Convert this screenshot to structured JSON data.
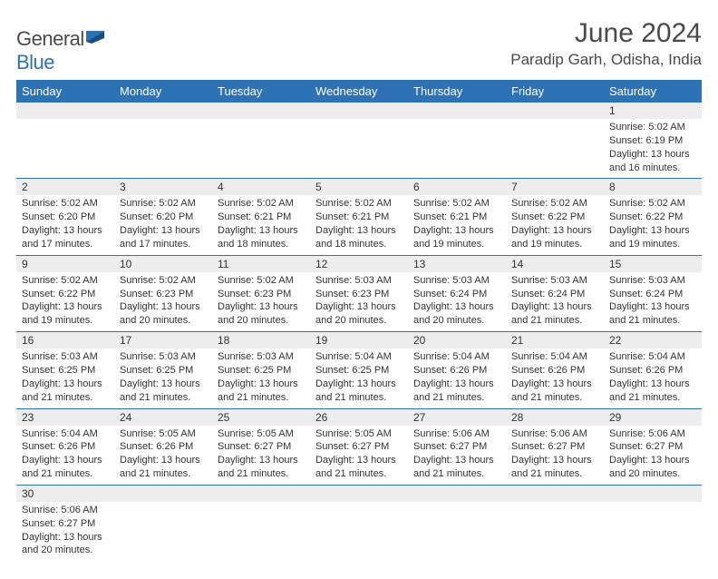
{
  "brand": {
    "part1": "General",
    "part2": "Blue"
  },
  "title": "June 2024",
  "location": "Paradip Garh, Odisha, India",
  "colors": {
    "header_bg": "#2d72b5",
    "header_text": "#ffffff",
    "daynum_bg": "#ededed",
    "border": "#2d72b5",
    "text": "#333333",
    "title_color": "#4a4a4a"
  },
  "fonts": {
    "title_size": 30,
    "location_size": 17,
    "day_header_size": 13,
    "daynum_size": 12,
    "body_size": 11
  },
  "day_headers": [
    "Sunday",
    "Monday",
    "Tuesday",
    "Wednesday",
    "Thursday",
    "Friday",
    "Saturday"
  ],
  "weeks": [
    [
      null,
      null,
      null,
      null,
      null,
      null,
      {
        "n": "1",
        "sr": "5:02 AM",
        "ss": "6:19 PM",
        "dl": "13 hours and 16 minutes."
      }
    ],
    [
      {
        "n": "2",
        "sr": "5:02 AM",
        "ss": "6:20 PM",
        "dl": "13 hours and 17 minutes."
      },
      {
        "n": "3",
        "sr": "5:02 AM",
        "ss": "6:20 PM",
        "dl": "13 hours and 17 minutes."
      },
      {
        "n": "4",
        "sr": "5:02 AM",
        "ss": "6:21 PM",
        "dl": "13 hours and 18 minutes."
      },
      {
        "n": "5",
        "sr": "5:02 AM",
        "ss": "6:21 PM",
        "dl": "13 hours and 18 minutes."
      },
      {
        "n": "6",
        "sr": "5:02 AM",
        "ss": "6:21 PM",
        "dl": "13 hours and 19 minutes."
      },
      {
        "n": "7",
        "sr": "5:02 AM",
        "ss": "6:22 PM",
        "dl": "13 hours and 19 minutes."
      },
      {
        "n": "8",
        "sr": "5:02 AM",
        "ss": "6:22 PM",
        "dl": "13 hours and 19 minutes."
      }
    ],
    [
      {
        "n": "9",
        "sr": "5:02 AM",
        "ss": "6:22 PM",
        "dl": "13 hours and 19 minutes."
      },
      {
        "n": "10",
        "sr": "5:02 AM",
        "ss": "6:23 PM",
        "dl": "13 hours and 20 minutes."
      },
      {
        "n": "11",
        "sr": "5:02 AM",
        "ss": "6:23 PM",
        "dl": "13 hours and 20 minutes."
      },
      {
        "n": "12",
        "sr": "5:03 AM",
        "ss": "6:23 PM",
        "dl": "13 hours and 20 minutes."
      },
      {
        "n": "13",
        "sr": "5:03 AM",
        "ss": "6:24 PM",
        "dl": "13 hours and 20 minutes."
      },
      {
        "n": "14",
        "sr": "5:03 AM",
        "ss": "6:24 PM",
        "dl": "13 hours and 21 minutes."
      },
      {
        "n": "15",
        "sr": "5:03 AM",
        "ss": "6:24 PM",
        "dl": "13 hours and 21 minutes."
      }
    ],
    [
      {
        "n": "16",
        "sr": "5:03 AM",
        "ss": "6:25 PM",
        "dl": "13 hours and 21 minutes."
      },
      {
        "n": "17",
        "sr": "5:03 AM",
        "ss": "6:25 PM",
        "dl": "13 hours and 21 minutes."
      },
      {
        "n": "18",
        "sr": "5:03 AM",
        "ss": "6:25 PM",
        "dl": "13 hours and 21 minutes."
      },
      {
        "n": "19",
        "sr": "5:04 AM",
        "ss": "6:25 PM",
        "dl": "13 hours and 21 minutes."
      },
      {
        "n": "20",
        "sr": "5:04 AM",
        "ss": "6:26 PM",
        "dl": "13 hours and 21 minutes."
      },
      {
        "n": "21",
        "sr": "5:04 AM",
        "ss": "6:26 PM",
        "dl": "13 hours and 21 minutes."
      },
      {
        "n": "22",
        "sr": "5:04 AM",
        "ss": "6:26 PM",
        "dl": "13 hours and 21 minutes."
      }
    ],
    [
      {
        "n": "23",
        "sr": "5:04 AM",
        "ss": "6:26 PM",
        "dl": "13 hours and 21 minutes."
      },
      {
        "n": "24",
        "sr": "5:05 AM",
        "ss": "6:26 PM",
        "dl": "13 hours and 21 minutes."
      },
      {
        "n": "25",
        "sr": "5:05 AM",
        "ss": "6:27 PM",
        "dl": "13 hours and 21 minutes."
      },
      {
        "n": "26",
        "sr": "5:05 AM",
        "ss": "6:27 PM",
        "dl": "13 hours and 21 minutes."
      },
      {
        "n": "27",
        "sr": "5:06 AM",
        "ss": "6:27 PM",
        "dl": "13 hours and 21 minutes."
      },
      {
        "n": "28",
        "sr": "5:06 AM",
        "ss": "6:27 PM",
        "dl": "13 hours and 21 minutes."
      },
      {
        "n": "29",
        "sr": "5:06 AM",
        "ss": "6:27 PM",
        "dl": "13 hours and 20 minutes."
      }
    ],
    [
      {
        "n": "30",
        "sr": "5:06 AM",
        "ss": "6:27 PM",
        "dl": "13 hours and 20 minutes."
      },
      null,
      null,
      null,
      null,
      null,
      null
    ]
  ],
  "labels": {
    "sunrise": "Sunrise:",
    "sunset": "Sunset:",
    "daylight": "Daylight:"
  }
}
